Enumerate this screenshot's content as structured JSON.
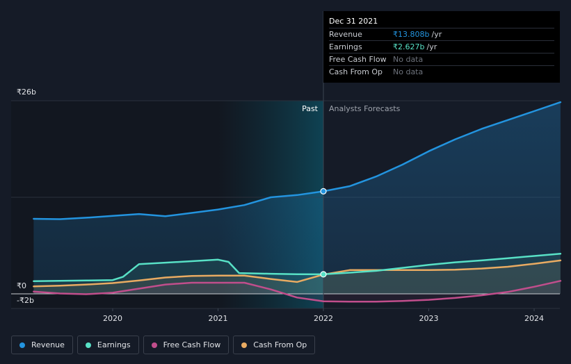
{
  "chart_data": {
    "type": "line",
    "x_ticks": [
      "2020",
      "2021",
      "2022",
      "2023",
      "2024"
    ],
    "y_labels": {
      "top": "₹26b",
      "zero": "₹0",
      "bottom": "-₹2b"
    },
    "ylim": [
      -2,
      26
    ],
    "divider_labels": {
      "past": "Past",
      "forecast": "Analysts Forecasts"
    },
    "divider_x": 2022.0,
    "series": [
      {
        "name": "Revenue",
        "color": "#2394df",
        "points": [
          [
            2019.25,
            10.1
          ],
          [
            2019.5,
            10.05
          ],
          [
            2019.75,
            10.25
          ],
          [
            2020.0,
            10.5
          ],
          [
            2020.25,
            10.75
          ],
          [
            2020.5,
            10.45
          ],
          [
            2020.75,
            10.9
          ],
          [
            2021.0,
            11.35
          ],
          [
            2021.25,
            11.95
          ],
          [
            2021.5,
            13.0
          ],
          [
            2021.75,
            13.3
          ],
          [
            2022.0,
            13.808
          ],
          [
            2022.25,
            14.5
          ],
          [
            2022.5,
            15.8
          ],
          [
            2022.75,
            17.4
          ],
          [
            2023.0,
            19.2
          ],
          [
            2023.25,
            20.8
          ],
          [
            2023.5,
            22.2
          ],
          [
            2023.75,
            23.4
          ],
          [
            2024.0,
            24.6
          ],
          [
            2024.25,
            25.8
          ]
        ]
      },
      {
        "name": "Earnings",
        "color": "#58e1c6",
        "points": [
          [
            2019.25,
            1.7
          ],
          [
            2019.5,
            1.75
          ],
          [
            2019.75,
            1.8
          ],
          [
            2020.0,
            1.85
          ],
          [
            2020.1,
            2.3
          ],
          [
            2020.25,
            4.0
          ],
          [
            2020.5,
            4.2
          ],
          [
            2020.75,
            4.4
          ],
          [
            2021.0,
            4.6
          ],
          [
            2021.1,
            4.3
          ],
          [
            2021.2,
            2.8
          ],
          [
            2021.5,
            2.7
          ],
          [
            2021.75,
            2.65
          ],
          [
            2022.0,
            2.627
          ],
          [
            2022.25,
            2.85
          ],
          [
            2022.5,
            3.1
          ],
          [
            2022.75,
            3.5
          ],
          [
            2023.0,
            3.9
          ],
          [
            2023.25,
            4.25
          ],
          [
            2023.5,
            4.5
          ],
          [
            2023.75,
            4.8
          ],
          [
            2024.0,
            5.1
          ],
          [
            2024.25,
            5.4
          ]
        ]
      },
      {
        "name": "Free Cash Flow",
        "color": "#c14e8c",
        "points": [
          [
            2019.25,
            0.3
          ],
          [
            2019.5,
            0.05
          ],
          [
            2019.75,
            -0.05
          ],
          [
            2020.0,
            0.15
          ],
          [
            2020.25,
            0.7
          ],
          [
            2020.5,
            1.25
          ],
          [
            2020.75,
            1.5
          ],
          [
            2021.0,
            1.5
          ],
          [
            2021.25,
            1.5
          ],
          [
            2021.5,
            0.6
          ],
          [
            2021.75,
            -0.5
          ],
          [
            2022.0,
            -1.0
          ],
          [
            2022.25,
            -1.05
          ],
          [
            2022.5,
            -1.05
          ],
          [
            2022.75,
            -0.95
          ],
          [
            2023.0,
            -0.8
          ],
          [
            2023.25,
            -0.55
          ],
          [
            2023.5,
            -0.2
          ],
          [
            2023.75,
            0.25
          ],
          [
            2024.0,
            0.95
          ],
          [
            2024.25,
            1.75
          ]
        ]
      },
      {
        "name": "Cash From Op",
        "color": "#e9ab62",
        "points": [
          [
            2019.25,
            1.0
          ],
          [
            2019.5,
            1.1
          ],
          [
            2019.75,
            1.25
          ],
          [
            2020.0,
            1.45
          ],
          [
            2020.25,
            1.8
          ],
          [
            2020.5,
            2.2
          ],
          [
            2020.75,
            2.4
          ],
          [
            2021.0,
            2.45
          ],
          [
            2021.25,
            2.45
          ],
          [
            2021.5,
            2.0
          ],
          [
            2021.75,
            1.6
          ],
          [
            2022.0,
            2.6
          ],
          [
            2022.25,
            3.2
          ],
          [
            2022.5,
            3.2
          ],
          [
            2022.75,
            3.2
          ],
          [
            2023.0,
            3.2
          ],
          [
            2023.25,
            3.25
          ],
          [
            2023.5,
            3.4
          ],
          [
            2023.75,
            3.65
          ],
          [
            2024.0,
            4.05
          ],
          [
            2024.25,
            4.5
          ]
        ]
      }
    ],
    "grid": true,
    "legend_position": "bottom-left"
  },
  "tooltip": {
    "date": "Dec 31 2021",
    "rows": [
      {
        "label": "Revenue",
        "value": "₹13.808b",
        "unit": "/yr",
        "color": "#2394df"
      },
      {
        "label": "Earnings",
        "value": "₹2.627b",
        "unit": "/yr",
        "color": "#58e1c6"
      },
      {
        "label": "Free Cash Flow",
        "value": "No data",
        "unit": ""
      },
      {
        "label": "Cash From Op",
        "value": "No data",
        "unit": ""
      }
    ]
  },
  "legend": [
    {
      "label": "Revenue",
      "color": "#2394df"
    },
    {
      "label": "Earnings",
      "color": "#58e1c6"
    },
    {
      "label": "Free Cash Flow",
      "color": "#c14e8c"
    },
    {
      "label": "Cash From Op",
      "color": "#e9ab62"
    }
  ]
}
